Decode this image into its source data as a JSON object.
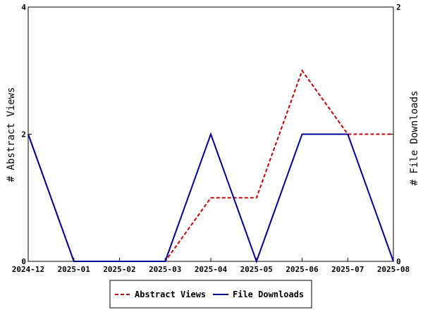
{
  "chart_data": {
    "type": "line",
    "x": [
      "2024-12",
      "2025-01",
      "2025-02",
      "2025-03",
      "2025-04",
      "2025-05",
      "2025-06",
      "2025-07",
      "2025-08"
    ],
    "series": [
      {
        "name": "Abstract Views",
        "axis": "left",
        "color": "#cc0000",
        "dash": "dashed",
        "values": [
          2,
          0,
          0,
          0,
          1,
          1,
          3,
          2,
          2
        ]
      },
      {
        "name": "File Downloads",
        "axis": "right",
        "color": "#000099",
        "dash": "solid",
        "values": [
          1,
          0,
          0,
          0,
          1,
          0,
          1,
          1,
          0
        ]
      }
    ],
    "ylabel_left": "# Abstract Views",
    "ylabel_right": "# File Downloads",
    "ylim_left": [
      0,
      4
    ],
    "ylim_right": [
      0,
      2
    ],
    "yticks_left": [
      "0",
      "2",
      "4"
    ],
    "yticks_right": [
      "0",
      "",
      "2"
    ],
    "grid": false,
    "legend_position": "bottom-center"
  }
}
